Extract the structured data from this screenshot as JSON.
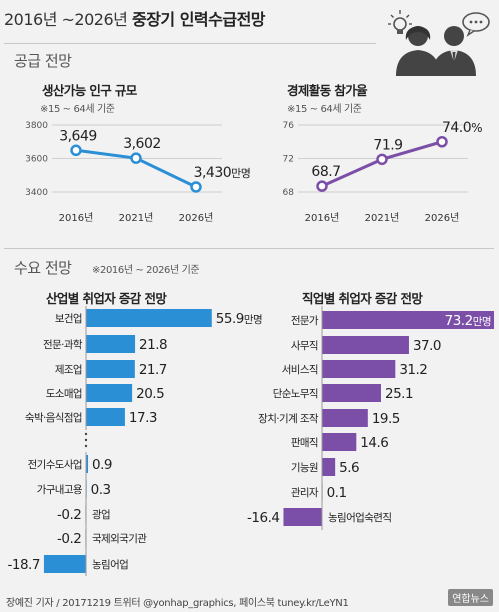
{
  "header": {
    "title_years": "2016년 ~2026년",
    "title_main": "중장기 인력수급전망"
  },
  "supply": {
    "section_title": "공급 전망"
  },
  "demand": {
    "section_title": "수요 전망",
    "note": "※2016년 ~ 2026년 기준"
  },
  "credit": "장예진 기자 / 20171219 트위터 @yonhap_graphics, 페이스북 tuney.kr/LeYN1",
  "watermark": "연합뉴스",
  "icons": [
    "lightbulb-icon",
    "speech-bubble-icon",
    "person-silhouette-icon"
  ],
  "colors": {
    "population_line": "#2b8fd6",
    "participation_line": "#7b4fa8",
    "industry_bar": "#2b8fd6",
    "occupation_bar": "#7b4fa8",
    "negative_bar": "#2b8fd6"
  },
  "chart_data": [
    {
      "type": "line",
      "title": "생산가능 인구 규모",
      "note": "※15 ~ 64세 기준",
      "x": [
        "2016년",
        "2021년",
        "2026년"
      ],
      "y": [
        3649,
        3602,
        3430
      ],
      "value_labels": [
        "3,649",
        "3,602",
        "3,430"
      ],
      "unit": "만명",
      "y_ticks": [
        "3800",
        "3600",
        "3400"
      ],
      "ylim": [
        3400,
        3800
      ]
    },
    {
      "type": "line",
      "title": "경제활동 참가율",
      "note": "※15 ~ 64세 기준",
      "x": [
        "2016년",
        "2021년",
        "2026년"
      ],
      "y": [
        68.7,
        71.9,
        74.0
      ],
      "value_labels": [
        "68.7",
        "71.9",
        "74.0"
      ],
      "unit": "%",
      "y_ticks": [
        "76",
        "72",
        "68"
      ],
      "ylim": [
        68,
        76
      ]
    },
    {
      "type": "bar",
      "title": "산업별 취업자 증감 전망",
      "categories": [
        "보건업",
        "전문·과학",
        "제조업",
        "도소매업",
        "숙박·음식점업",
        "전기수도사업",
        "가구내고용",
        "광업",
        "국제외국기관",
        "농림어업"
      ],
      "values": [
        55.9,
        21.8,
        21.7,
        20.5,
        17.3,
        0.9,
        0.3,
        -0.2,
        -0.2,
        -18.7
      ],
      "value_labels": [
        "55.9",
        "21.8",
        "21.7",
        "20.5",
        "17.3",
        "0.9",
        "0.3",
        "-0.2",
        "-0.2",
        "-18.7"
      ],
      "unit": "만명"
    },
    {
      "type": "bar",
      "title": "직업별 취업자 증감 전망",
      "categories": [
        "전문가",
        "사무직",
        "서비스직",
        "단순노무직",
        "장치·기계 조작",
        "판매직",
        "기능원",
        "관리자",
        "농림어업숙련직"
      ],
      "values": [
        73.2,
        37.0,
        31.2,
        25.1,
        19.5,
        14.6,
        5.6,
        0.1,
        -16.4
      ],
      "value_labels": [
        "73.2",
        "37.0",
        "31.2",
        "25.1",
        "19.5",
        "14.6",
        "5.6",
        "0.1",
        "-16.4"
      ],
      "unit": "만명"
    }
  ]
}
